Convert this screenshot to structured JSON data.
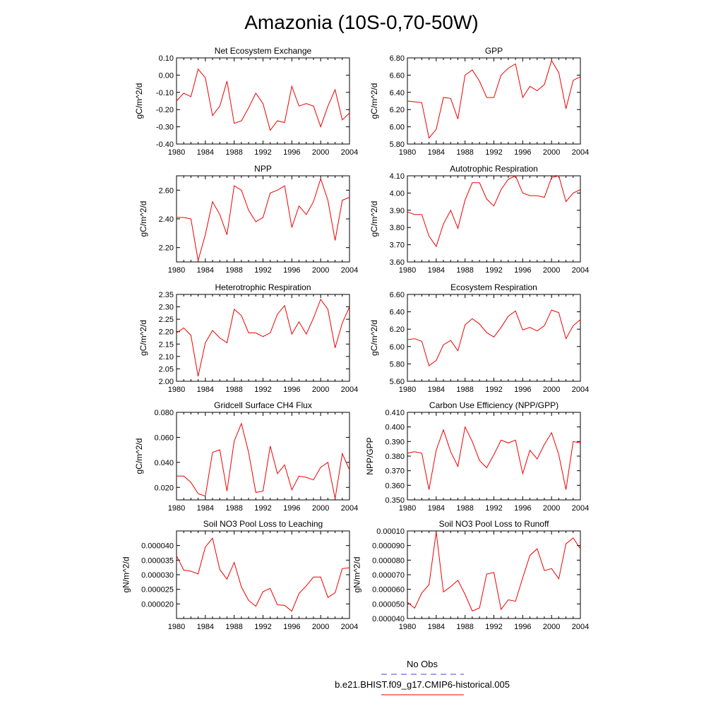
{
  "title": "Amazonia (10S-0,70-50W)",
  "colors": {
    "series": "#ee0000",
    "obs": "#4444cc",
    "axis": "#000000"
  },
  "chart_data": [
    {
      "type": "line",
      "title": "Net Ecosystem Exchange",
      "ylabel": "gC/m^2/d",
      "x": [
        1980,
        1981,
        1982,
        1983,
        1984,
        1985,
        1986,
        1987,
        1988,
        1989,
        1990,
        1991,
        1992,
        1993,
        1994,
        1995,
        1996,
        1997,
        1998,
        1999,
        2000,
        2001,
        2002,
        2003,
        2004
      ],
      "values": [
        -0.15,
        -0.105,
        -0.125,
        0.035,
        -0.015,
        -0.235,
        -0.18,
        -0.035,
        -0.28,
        -0.265,
        -0.19,
        -0.105,
        -0.165,
        -0.32,
        -0.265,
        -0.275,
        -0.065,
        -0.18,
        -0.165,
        -0.18,
        -0.3,
        -0.18,
        -0.085,
        -0.26,
        -0.22
      ],
      "xlim": [
        1980,
        2004
      ],
      "ylim": [
        -0.4,
        0.1
      ],
      "xticks": [
        1980,
        1984,
        1988,
        1992,
        1996,
        2000,
        2004
      ],
      "yticks": [
        -0.4,
        -0.3,
        -0.2,
        -0.1,
        0,
        0.1
      ],
      "yticklabels": [
        "-0.40",
        "-0.30",
        "-0.20",
        "-0.10",
        "0.00",
        "0.10"
      ]
    },
    {
      "type": "line",
      "title": "GPP",
      "ylabel": "gC/m^2/d",
      "x": [
        1980,
        1981,
        1982,
        1983,
        1984,
        1985,
        1986,
        1987,
        1988,
        1989,
        1990,
        1991,
        1992,
        1993,
        1994,
        1995,
        1996,
        1997,
        1998,
        1999,
        2000,
        2001,
        2002,
        2003,
        2004
      ],
      "values": [
        6.3,
        6.29,
        6.28,
        5.87,
        5.97,
        6.34,
        6.33,
        6.09,
        6.6,
        6.66,
        6.53,
        6.34,
        6.34,
        6.6,
        6.68,
        6.73,
        6.34,
        6.47,
        6.42,
        6.49,
        6.77,
        6.63,
        6.21,
        6.54,
        6.58
      ],
      "xlim": [
        1980,
        2004
      ],
      "ylim": [
        5.8,
        6.8
      ],
      "xticks": [
        1980,
        1984,
        1988,
        1992,
        1996,
        2000,
        2004
      ],
      "yticks": [
        5.8,
        6.0,
        6.2,
        6.4,
        6.6,
        6.8
      ],
      "yticklabels": [
        "5.80",
        "6.00",
        "6.20",
        "6.40",
        "6.60",
        "6.80"
      ]
    },
    {
      "type": "line",
      "title": "NPP",
      "ylabel": "gC/m^2/d",
      "x": [
        1980,
        1981,
        1982,
        1983,
        1984,
        1985,
        1986,
        1987,
        1988,
        1989,
        1990,
        1991,
        1992,
        1993,
        1994,
        1995,
        1996,
        1997,
        1998,
        1999,
        2000,
        2001,
        2002,
        2003,
        2004
      ],
      "values": [
        2.41,
        2.41,
        2.4,
        2.11,
        2.29,
        2.52,
        2.43,
        2.29,
        2.63,
        2.6,
        2.46,
        2.38,
        2.41,
        2.58,
        2.6,
        2.63,
        2.34,
        2.49,
        2.43,
        2.52,
        2.68,
        2.53,
        2.25,
        2.53,
        2.55
      ],
      "xlim": [
        1980,
        2004
      ],
      "ylim": [
        2.1,
        2.7
      ],
      "xticks": [
        1980,
        1984,
        1988,
        1992,
        1996,
        2000,
        2004
      ],
      "yticks": [
        2.2,
        2.4,
        2.6
      ],
      "yticklabels": [
        "2.20",
        "2.40",
        "2.60"
      ]
    },
    {
      "type": "line",
      "title": "Autotrophic Respiration",
      "ylabel": "gC/m^2/d",
      "x": [
        1980,
        1981,
        1982,
        1983,
        1984,
        1985,
        1986,
        1987,
        1988,
        1989,
        1990,
        1991,
        1992,
        1993,
        1994,
        1995,
        1996,
        1997,
        1998,
        1999,
        2000,
        2001,
        2002,
        2003,
        2004
      ],
      "values": [
        3.89,
        3.875,
        3.875,
        3.75,
        3.69,
        3.82,
        3.9,
        3.795,
        3.96,
        4.06,
        4.06,
        3.965,
        3.925,
        4.02,
        4.08,
        4.1,
        4.0,
        3.985,
        3.985,
        3.975,
        4.09,
        4.1,
        3.95,
        4.0,
        4.02
      ],
      "xlim": [
        1980,
        2004
      ],
      "ylim": [
        3.6,
        4.1
      ],
      "xticks": [
        1980,
        1984,
        1988,
        1992,
        1996,
        2000,
        2004
      ],
      "yticks": [
        3.6,
        3.7,
        3.8,
        3.9,
        4.0,
        4.1
      ],
      "yticklabels": [
        "3.60",
        "3.70",
        "3.80",
        "3.90",
        "4.00",
        "4.10"
      ]
    },
    {
      "type": "line",
      "title": "Heterotrophic Respiration",
      "ylabel": "gC/m^2/d",
      "x": [
        1980,
        1981,
        1982,
        1983,
        1984,
        1985,
        1986,
        1987,
        1988,
        1989,
        1990,
        1991,
        1992,
        1993,
        1994,
        1995,
        1996,
        1997,
        1998,
        1999,
        2000,
        2001,
        2002,
        2003,
        2004
      ],
      "values": [
        2.195,
        2.215,
        2.185,
        2.02,
        2.155,
        2.205,
        2.175,
        2.155,
        2.29,
        2.265,
        2.195,
        2.195,
        2.18,
        2.195,
        2.27,
        2.305,
        2.19,
        2.24,
        2.19,
        2.255,
        2.33,
        2.29,
        2.135,
        2.235,
        2.3
      ],
      "xlim": [
        1980,
        2004
      ],
      "ylim": [
        2.0,
        2.35
      ],
      "xticks": [
        1980,
        1984,
        1988,
        1992,
        1996,
        2000,
        2004
      ],
      "yticks": [
        2.0,
        2.05,
        2.1,
        2.15,
        2.2,
        2.25,
        2.3,
        2.35
      ],
      "yticklabels": [
        "2.00",
        "2.05",
        "2.10",
        "2.15",
        "2.20",
        "2.25",
        "2.30",
        "2.35"
      ]
    },
    {
      "type": "line",
      "title": "Ecosystem Respiration",
      "ylabel": "gC/m^2/d",
      "x": [
        1980,
        1981,
        1982,
        1983,
        1984,
        1985,
        1986,
        1987,
        1988,
        1989,
        1990,
        1991,
        1992,
        1993,
        1994,
        1995,
        1996,
        1997,
        1998,
        1999,
        2000,
        2001,
        2002,
        2003,
        2004
      ],
      "values": [
        6.08,
        6.09,
        6.06,
        5.78,
        5.84,
        6.02,
        6.07,
        5.95,
        6.25,
        6.32,
        6.26,
        6.16,
        6.11,
        6.22,
        6.35,
        6.41,
        6.19,
        6.22,
        6.18,
        6.24,
        6.42,
        6.39,
        6.09,
        6.24,
        6.31
      ],
      "xlim": [
        1980,
        2004
      ],
      "ylim": [
        5.6,
        6.6
      ],
      "xticks": [
        1980,
        1984,
        1988,
        1992,
        1996,
        2000,
        2004
      ],
      "yticks": [
        5.6,
        5.8,
        6.0,
        6.2,
        6.4,
        6.6
      ],
      "yticklabels": [
        "5.60",
        "5.80",
        "6.00",
        "6.20",
        "6.40",
        "6.60"
      ]
    },
    {
      "type": "line",
      "title": "Gridcell Surface CH4 Flux",
      "ylabel": "gC/m^2/d",
      "x": [
        1980,
        1981,
        1982,
        1983,
        1984,
        1985,
        1986,
        1987,
        1988,
        1989,
        1990,
        1991,
        1992,
        1993,
        1994,
        1995,
        1996,
        1997,
        1998,
        1999,
        2000,
        2001,
        2002,
        2003,
        2004
      ],
      "values": [
        0.029,
        0.029,
        0.024,
        0.015,
        0.013,
        0.048,
        0.05,
        0.017,
        0.057,
        0.071,
        0.048,
        0.016,
        0.017,
        0.053,
        0.031,
        0.038,
        0.018,
        0.029,
        0.028,
        0.026,
        0.036,
        0.04,
        0.011,
        0.047,
        0.034
      ],
      "xlim": [
        1980,
        2004
      ],
      "ylim": [
        0.01,
        0.08
      ],
      "xticks": [
        1980,
        1984,
        1988,
        1992,
        1996,
        2000,
        2004
      ],
      "yticks": [
        0.02,
        0.04,
        0.06,
        0.08
      ],
      "yticklabels": [
        "0.020",
        "0.040",
        "0.060",
        "0.080"
      ]
    },
    {
      "type": "line",
      "title": "Carbon Use Efficiency (NPP/GPP)",
      "ylabel": "NPP/GPP",
      "x": [
        1980,
        1981,
        1982,
        1983,
        1984,
        1985,
        1986,
        1987,
        1988,
        1989,
        1990,
        1991,
        1992,
        1993,
        1994,
        1995,
        1996,
        1997,
        1998,
        1999,
        2000,
        2001,
        2002,
        2003,
        2004
      ],
      "values": [
        0.382,
        0.383,
        0.382,
        0.357,
        0.384,
        0.398,
        0.383,
        0.373,
        0.4,
        0.39,
        0.377,
        0.372,
        0.381,
        0.391,
        0.389,
        0.391,
        0.368,
        0.384,
        0.378,
        0.388,
        0.396,
        0.381,
        0.357,
        0.39,
        0.389
      ],
      "xlim": [
        1980,
        2004
      ],
      "ylim": [
        0.35,
        0.41
      ],
      "xticks": [
        1980,
        1984,
        1988,
        1992,
        1996,
        2000,
        2004
      ],
      "yticks": [
        0.35,
        0.36,
        0.37,
        0.38,
        0.39,
        0.4,
        0.41
      ],
      "yticklabels": [
        "0.350",
        "0.360",
        "0.370",
        "0.380",
        "0.390",
        "0.400",
        "0.410"
      ]
    },
    {
      "type": "line",
      "title": "Soil NO3 Pool Loss to Leaching",
      "ylabel": "gN/m^2/d",
      "x": [
        1980,
        1981,
        1982,
        1983,
        1984,
        1985,
        1986,
        1987,
        1988,
        1989,
        1990,
        1991,
        1992,
        1993,
        1994,
        1995,
        1996,
        1997,
        1998,
        1999,
        2000,
        2001,
        2002,
        2003,
        2004
      ],
      "values": [
        3.65e-05,
        3.16e-05,
        3.12e-05,
        3.03e-05,
        3.95e-05,
        4.25e-05,
        3.18e-05,
        2.85e-05,
        3.42e-05,
        2.58e-05,
        2.12e-05,
        1.92e-05,
        2.42e-05,
        2.53e-05,
        1.97e-05,
        1.95e-05,
        1.75e-05,
        2.36e-05,
        2.62e-05,
        2.92e-05,
        2.92e-05,
        2.22e-05,
        2.38e-05,
        3.21e-05,
        3.24e-05
      ],
      "xlim": [
        1980,
        2004
      ],
      "ylim": [
        1.5e-05,
        4.5e-05
      ],
      "xticks": [
        1980,
        1984,
        1988,
        1992,
        1996,
        2000,
        2004
      ],
      "yticks": [
        2e-05,
        2.5e-05,
        3e-05,
        3.5e-05,
        4e-05
      ],
      "yticklabels": [
        "0.000020",
        "0.000025",
        "0.000030",
        "0.000035",
        "0.000040"
      ]
    },
    {
      "type": "line",
      "title": "Soil NO3 Pool Loss to Runoff",
      "ylabel": "gN/m^2/d",
      "x": [
        1980,
        1981,
        1982,
        1983,
        1984,
        1985,
        1986,
        1987,
        1988,
        1989,
        1990,
        1991,
        1992,
        1993,
        1994,
        1995,
        1996,
        1997,
        1998,
        1999,
        2000,
        2001,
        2002,
        2003,
        2004
      ],
      "values": [
        5.12e-05,
        4.71e-05,
        5.75e-05,
        6.32e-05,
        9.93e-05,
        5.82e-05,
        6.18e-05,
        6.62e-05,
        5.65e-05,
        4.52e-05,
        4.72e-05,
        7.05e-05,
        7.15e-05,
        4.62e-05,
        5.28e-05,
        5.18e-05,
        6.78e-05,
        8.32e-05,
        8.78e-05,
        7.28e-05,
        7.42e-05,
        6.72e-05,
        9.12e-05,
        9.52e-05,
        8.78e-05
      ],
      "xlim": [
        1980,
        2004
      ],
      "ylim": [
        4e-05,
        0.0001
      ],
      "xticks": [
        1980,
        1984,
        1988,
        1992,
        1996,
        2000,
        2004
      ],
      "yticks": [
        4e-05,
        5e-05,
        6e-05,
        7e-05,
        8e-05,
        9e-05,
        0.0001
      ],
      "yticklabels": [
        "0.000040",
        "0.000050",
        "0.000060",
        "0.000070",
        "0.000080",
        "0.000090",
        "0.00010"
      ]
    }
  ],
  "legend": {
    "items": [
      {
        "label": "No Obs",
        "style": "dashed",
        "color": "#4444cc"
      },
      {
        "label": "b.e21.BHIST.f09_g17.CMIP6-historical.005",
        "style": "solid",
        "color": "#ee0000"
      }
    ]
  }
}
